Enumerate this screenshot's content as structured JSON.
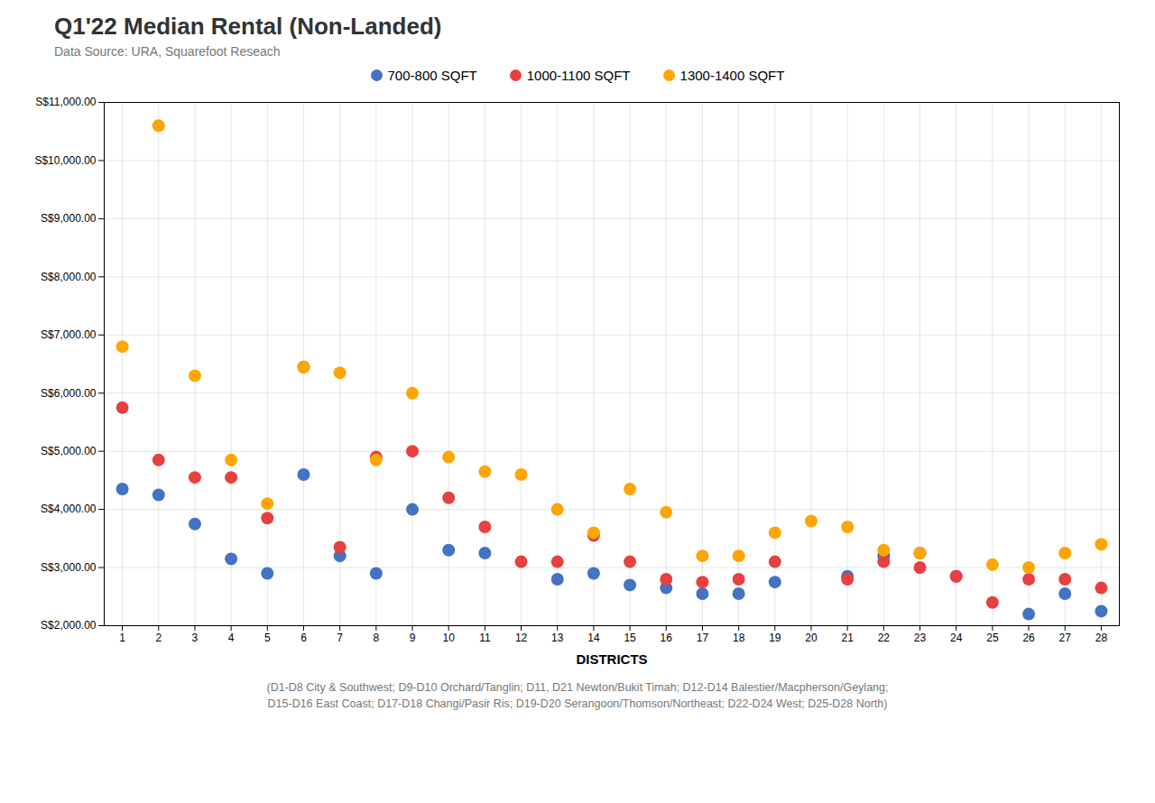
{
  "chart_data": {
    "type": "scatter",
    "title": "Q1'22 Median Rental (Non-Landed)",
    "subtitle": "Data Source: URA, Squarefoot Reseach",
    "xlabel": "DISTRICTS",
    "caption": "(D1-D8 City & Southwest;  D9-D10 Orchard/Tanglin;  D11, D21 Newton/Bukit Timah;  D12-D14 Balestier/Macpherson/Geylang;\nD15-D16 East Coast;  D17-D18 Changi/Pasir Ris;  D19-D20 Serangoon/Thomson/Northeast;  D22-D24 West;  D25-D28 North)",
    "x": [
      1,
      2,
      3,
      4,
      5,
      6,
      7,
      8,
      9,
      10,
      11,
      12,
      13,
      14,
      15,
      16,
      17,
      18,
      19,
      20,
      21,
      22,
      23,
      24,
      25,
      26,
      27,
      28
    ],
    "xlim": [
      0.5,
      28.5
    ],
    "xticks": [
      1,
      2,
      3,
      4,
      5,
      6,
      7,
      8,
      9,
      10,
      11,
      12,
      13,
      14,
      15,
      16,
      17,
      18,
      19,
      20,
      21,
      22,
      23,
      24,
      25,
      26,
      27,
      28
    ],
    "ylim": [
      2000,
      11000
    ],
    "yticks": [
      {
        "value": 2000,
        "label": "S$2,000.00"
      },
      {
        "value": 3000,
        "label": "S$3,000.00"
      },
      {
        "value": 4000,
        "label": "S$4,000.00"
      },
      {
        "value": 5000,
        "label": "S$5,000.00"
      },
      {
        "value": 6000,
        "label": "S$6,000.00"
      },
      {
        "value": 7000,
        "label": "S$7,000.00"
      },
      {
        "value": 8000,
        "label": "S$8,000.00"
      },
      {
        "value": 9000,
        "label": "S$9,000.00"
      },
      {
        "value": 10000,
        "label": "S$10,000.00"
      },
      {
        "value": 11000,
        "label": "S$11,000.00"
      }
    ],
    "grid": true,
    "legend": "top",
    "series": [
      {
        "name": "700-800 SQFT",
        "color": "#4472C4",
        "values": [
          4350,
          4250,
          3750,
          3150,
          2900,
          4600,
          3200,
          2900,
          4000,
          3300,
          3250,
          null,
          2800,
          2900,
          2700,
          2650,
          2550,
          2550,
          2750,
          null,
          2850,
          3200,
          3250,
          2850,
          null,
          2200,
          2550,
          2250
        ]
      },
      {
        "name": "1000-1100 SQFT",
        "color": "#E84040",
        "values": [
          5750,
          4850,
          4550,
          4550,
          3850,
          6450,
          3350,
          4900,
          5000,
          4200,
          3700,
          3100,
          3100,
          3550,
          3100,
          2800,
          2750,
          2800,
          3100,
          null,
          2800,
          3100,
          3000,
          2850,
          2400,
          2800,
          2800,
          2650
        ]
      },
      {
        "name": "1300-1400 SQFT",
        "color": "#FFA500",
        "values": [
          6800,
          10600,
          6300,
          4850,
          4100,
          6450,
          6350,
          4850,
          6000,
          4900,
          4650,
          4600,
          4000,
          3600,
          4350,
          3950,
          3200,
          3200,
          3600,
          3800,
          3700,
          3300,
          3250,
          null,
          3050,
          3000,
          3250,
          3400
        ]
      }
    ]
  }
}
